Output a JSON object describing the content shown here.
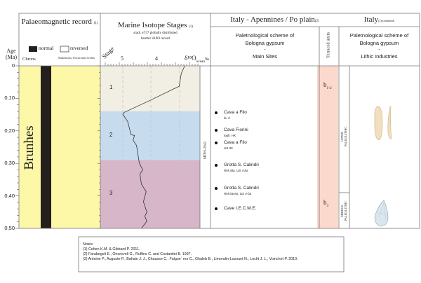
{
  "age_axis": {
    "label": "Age (Ma)",
    "ticks": [
      "0",
      "0,10",
      "0,20",
      "0,30",
      "0,40",
      "0,50"
    ]
  },
  "palaeomagnetic": {
    "title": "Palaeomagnetic record",
    "ref": "(1)",
    "legend_normal": "normal",
    "legend_reversed": "reversed",
    "col_chrons": "Chrons",
    "col_subchrons": "Subchrons, Excursion events",
    "chron_name": "Brunhes",
    "polarity": "normal",
    "colors": {
      "chron_bg": "#fdf7a8",
      "normal": "#231f1c"
    }
  },
  "isotope": {
    "title": "Marine Isotope Stages",
    "ref": "(1)",
    "subtitle_1": "stack of 57 globally distributed",
    "subtitle_2": "benthic δ18O record",
    "stage_label": "Stage",
    "axis_ticks": [
      "5",
      "4"
    ],
    "axis_unit": "δ¹⁸O",
    "axis_unit_sub": "ocean",
    "axis_unit_permil": "‰",
    "core_label": "MD95-2042",
    "stages": [
      {
        "label": "1",
        "from": 0,
        "to": 0.14,
        "color": "#f1eee3"
      },
      {
        "label": "2",
        "from": 0.14,
        "to": 0.29,
        "color": "#c6dbee"
      },
      {
        "label": "3",
        "from": 0.29,
        "to": 0.5,
        "color": "#d6b6c8"
      }
    ],
    "curve": [
      [
        0,
        3.2
      ],
      [
        0.024,
        3.3
      ],
      [
        0.063,
        3.36
      ],
      [
        0.071,
        3.52
      ],
      [
        0.106,
        4.2
      ],
      [
        0.143,
        4.96
      ],
      [
        0.149,
        5.0
      ],
      [
        0.171,
        4.86
      ],
      [
        0.212,
        4.76
      ],
      [
        0.214,
        4.66
      ],
      [
        0.229,
        4.7
      ],
      [
        0.245,
        4.6
      ],
      [
        0.299,
        4.52
      ],
      [
        0.32,
        4.42
      ],
      [
        0.333,
        4.5
      ],
      [
        0.364,
        4.46
      ],
      [
        0.387,
        4.32
      ],
      [
        0.418,
        4.4
      ],
      [
        0.45,
        4.3
      ],
      [
        0.463,
        4.36
      ],
      [
        0.478,
        4.3
      ],
      [
        0.5,
        4.46
      ]
    ]
  },
  "italy": {
    "title": "Italy - Apennines / Po plain",
    "ref": "(2)",
    "sites_header": [
      "Paletnological scheme of",
      "Bologna gypsum",
      "-",
      "Main Sites"
    ],
    "terraced_header": "Terraced units",
    "terraced_color": "#fbd9cc",
    "units": [
      {
        "label": "b",
        "sub": "1-2"
      },
      {
        "label": "b",
        "sub": "3"
      }
    ],
    "sites": [
      {
        "name": "Cava a Filo",
        "sub": "liv. h"
      },
      {
        "name": "Cava Fiorini",
        "sub": "ingh. HK"
      },
      {
        "name": "Cava a Filo",
        "sub": "US 99"
      },
      {
        "name": "Grotta S. Calindri",
        "sub": "RM alto, US 4-ba"
      },
      {
        "name": "Grotta S. Calindri",
        "sub": "RM basso, US 4-ba"
      },
      {
        "name": "Cave I.E.C.M.E.",
        "sub": ""
      }
    ]
  },
  "italy_continued": {
    "title": "Italy",
    "ref": "(2)(continued)",
    "header": [
      "Paletnological scheme of",
      "Bologna gypsum",
      "-",
      "Lithic Industries"
    ],
    "industries": [
      {
        "line1": "UPPER",
        "line2": "PALEOLITHIC",
        "artifact": "blade-drawing"
      },
      {
        "line1": "MIDDLE",
        "line2": "PALEOLITHIC",
        "artifact": "point-drawing"
      }
    ]
  },
  "notes": {
    "title": "Notes:",
    "items": [
      "(1) Cohen K.M. & Gibbard P. 2011.",
      "(2) Farabegoli E., Onorevoli G., Ruffino C. and Costantini B. 1997.",
      "(3) Antoine P., Auguste P., Bahain J. J., Chausse C., Falgue` res C., Ghaleb B., Limondin-Lozouet N., Locht J. L., Voinchet P. 2010."
    ]
  }
}
